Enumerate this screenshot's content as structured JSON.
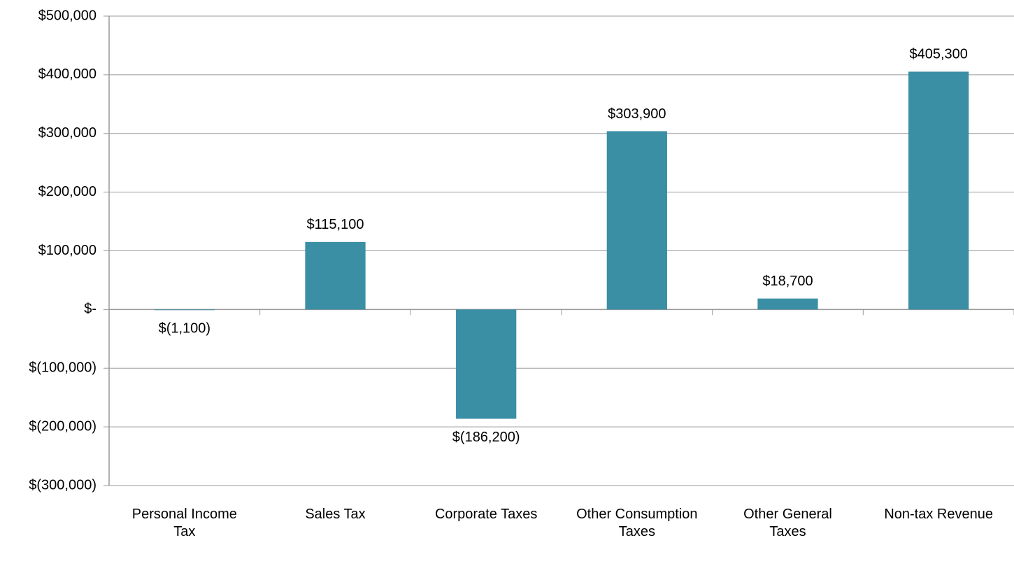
{
  "chart_data": {
    "type": "bar",
    "categories": [
      "Personal Income Tax",
      "Sales Tax",
      "Corporate Taxes",
      "Other Consumption Taxes",
      "Other General Taxes",
      "Non-tax Revenue"
    ],
    "values": [
      -1100,
      115100,
      -186200,
      303900,
      18700,
      405300
    ],
    "value_labels": [
      "$(1,100)",
      "$115,100",
      "$(186,200)",
      "$303,900",
      "$18,700",
      "$405,300"
    ],
    "color": "#3a8fa5",
    "ylim": [
      -300000,
      500000
    ],
    "yticks": [
      {
        "value": -300000,
        "label": "$(300,000)"
      },
      {
        "value": -200000,
        "label": "$(200,000)"
      },
      {
        "value": -100000,
        "label": "$(100,000)"
      },
      {
        "value": 0,
        "label": "$-"
      },
      {
        "value": 100000,
        "label": "$100,000"
      },
      {
        "value": 200000,
        "label": "$200,000"
      },
      {
        "value": 300000,
        "label": "$300,000"
      },
      {
        "value": 400000,
        "label": "$400,000"
      },
      {
        "value": 500000,
        "label": "$500,000"
      }
    ],
    "grid": true
  }
}
